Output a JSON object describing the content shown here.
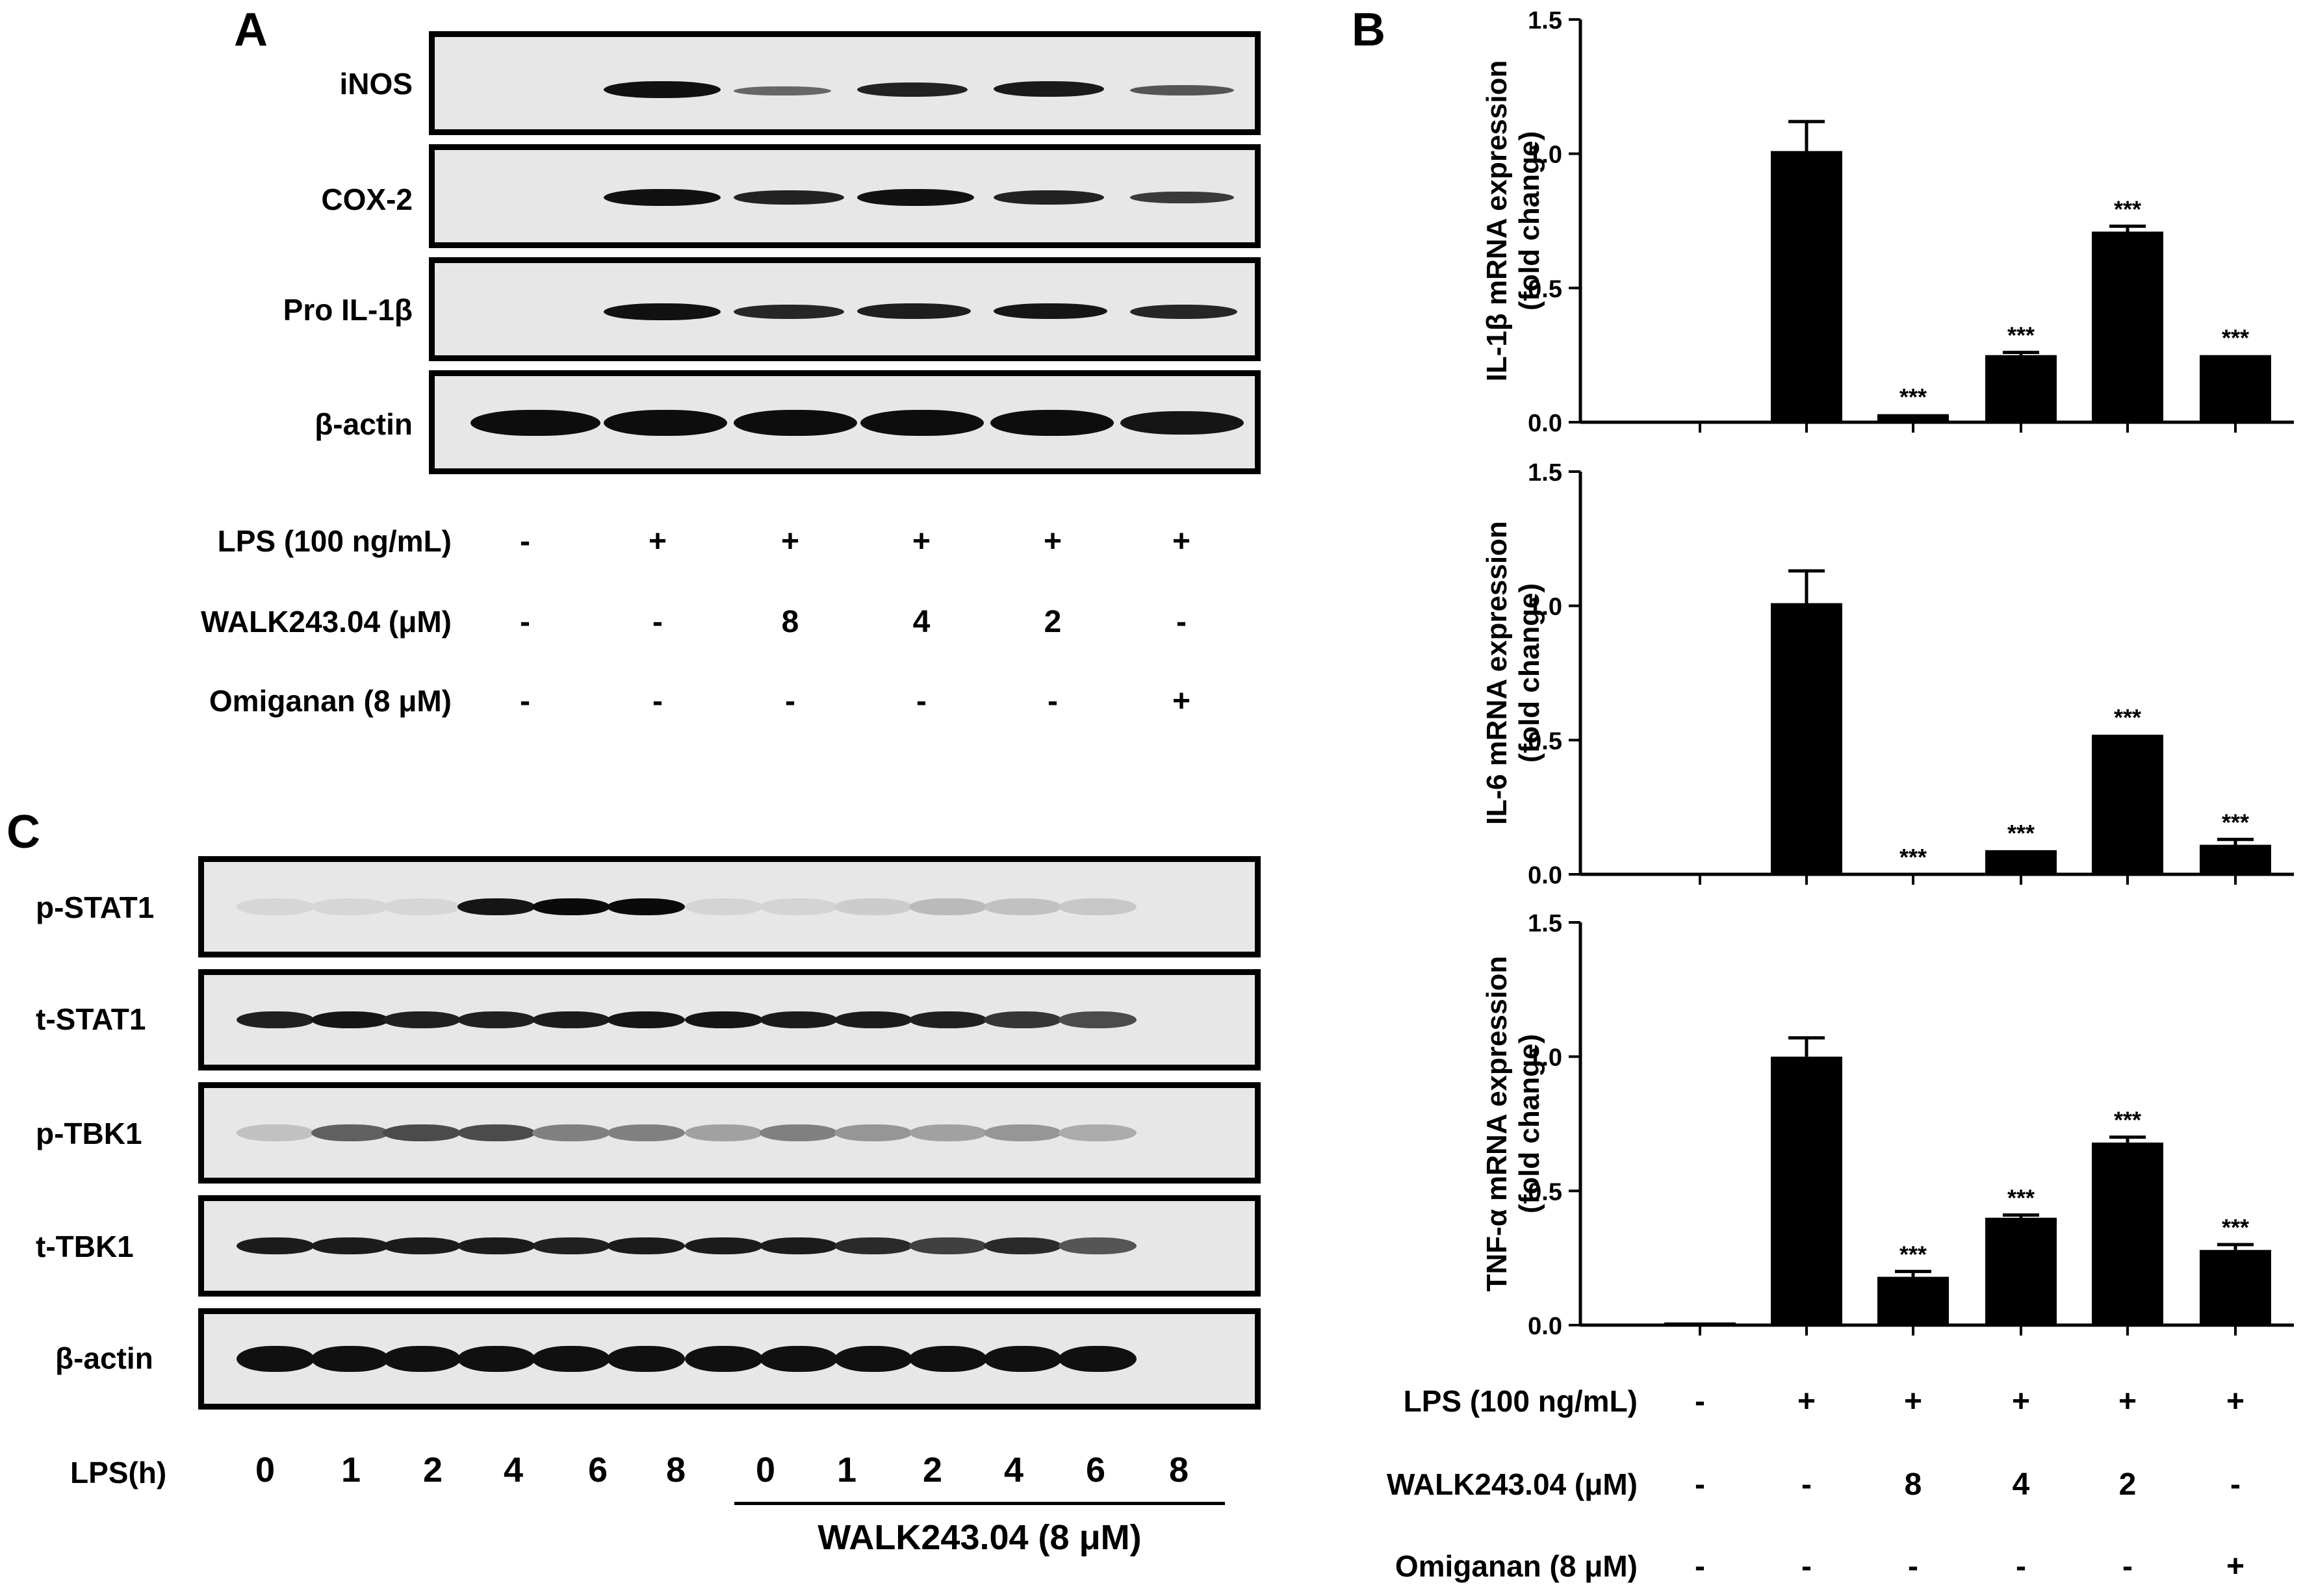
{
  "panel_a": {
    "letter": "A",
    "blot_labels": [
      "iNOS",
      "COX-2",
      "Pro IL-1β",
      "β-actin"
    ],
    "condition_labels": [
      "LPS (100 ng/mL)",
      "WALK243.04 (μM)",
      "Omiganan (8 μM)"
    ],
    "condition_values": [
      [
        "-",
        "+",
        "+",
        "+",
        "+",
        "+"
      ],
      [
        "-",
        "-",
        "8",
        "4",
        "2",
        "-"
      ],
      [
        "-",
        "-",
        "-",
        "-",
        "-",
        "+"
      ]
    ]
  },
  "panel_b": {
    "letter": "B",
    "condition_labels": [
      "LPS (100 ng/mL)",
      "WALK243.04 (μM)",
      "Omiganan (8 μM)"
    ],
    "condition_values": [
      [
        "-",
        "+",
        "+",
        "+",
        "+",
        "+"
      ],
      [
        "-",
        "-",
        "8",
        "4",
        "2",
        "-"
      ],
      [
        "-",
        "-",
        "-",
        "-",
        "-",
        "+"
      ]
    ]
  },
  "panel_c": {
    "letter": "C",
    "blot_labels": [
      "p-STAT1",
      "t-STAT1",
      "p-TBK1",
      "t-TBK1",
      "β-actin"
    ],
    "lps_label": "LPS(h)",
    "lane_labels": [
      "0",
      "1",
      "2",
      "4",
      "6",
      "8",
      "0",
      "1",
      "2",
      "4",
      "6",
      "8"
    ],
    "treatment_label": "WALK243.04 (8 μM)"
  },
  "chart_data": [
    {
      "type": "bar",
      "ylabel_line1": "IL-1β  mRNA expression",
      "ylabel_line2": "(fold change)",
      "ylim": [
        0,
        1.5
      ],
      "yticks": [
        "0.0",
        "0.5",
        "1.0",
        "1.5"
      ],
      "values": [
        0.0,
        1.01,
        0.03,
        0.25,
        0.71,
        0.25
      ],
      "errors": [
        0.0,
        0.11,
        0.0,
        0.01,
        0.02,
        0.0
      ],
      "annotations": [
        "",
        "",
        "***",
        "***",
        "***",
        "***"
      ]
    },
    {
      "type": "bar",
      "ylabel_line1": "IL-6 mRNA expression",
      "ylabel_line2": "(fold change)",
      "ylim": [
        0,
        1.5
      ],
      "yticks": [
        "0.0",
        "0.5",
        "1.0",
        "1.5"
      ],
      "values": [
        0.0,
        1.01,
        0.0,
        0.09,
        0.52,
        0.11
      ],
      "errors": [
        0.0,
        0.12,
        0.0,
        0.0,
        0.0,
        0.02
      ],
      "annotations": [
        "",
        "",
        "***",
        "***",
        "***",
        "***"
      ]
    },
    {
      "type": "bar",
      "ylabel_line1": "TNF-α  mRNA expression",
      "ylabel_line2": "(fold change)",
      "ylim": [
        0,
        1.5
      ],
      "yticks": [
        "0.0",
        "0.5",
        "1.0",
        "1.5"
      ],
      "values": [
        0.01,
        1.0,
        0.18,
        0.4,
        0.68,
        0.28
      ],
      "errors": [
        0.0,
        0.07,
        0.02,
        0.01,
        0.02,
        0.02
      ],
      "annotations": [
        "",
        "",
        "***",
        "***",
        "***",
        "***"
      ]
    }
  ]
}
